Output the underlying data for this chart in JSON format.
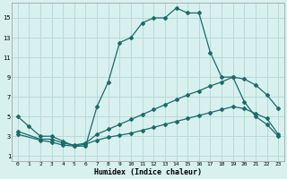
{
  "xlabel": "Humidex (Indice chaleur)",
  "bg_color": "#d8f0ee",
  "grid_color": "#b8dbd8",
  "line_color": "#1a6b6b",
  "xlim": [
    -0.5,
    23.5
  ],
  "ylim": [
    0.5,
    16.5
  ],
  "xticks": [
    0,
    1,
    2,
    3,
    4,
    5,
    6,
    7,
    8,
    9,
    10,
    11,
    12,
    13,
    14,
    15,
    16,
    17,
    18,
    19,
    20,
    21,
    22,
    23
  ],
  "yticks": [
    1,
    3,
    5,
    7,
    9,
    11,
    13,
    15
  ],
  "curve1_x": [
    0,
    1,
    2,
    3,
    4,
    5,
    6,
    7,
    8,
    9,
    10,
    11,
    12,
    13,
    14,
    15,
    16,
    17,
    18,
    19,
    20,
    21,
    22,
    23
  ],
  "curve1_y": [
    5,
    4,
    3,
    3,
    2.5,
    2,
    2,
    6,
    8.5,
    12.5,
    13,
    14.5,
    15,
    15,
    16,
    15.5,
    15.5,
    11.5,
    9,
    9,
    6.5,
    5,
    4.2,
    3
  ],
  "curve2_x": [
    0,
    2,
    3,
    4,
    5,
    6,
    7,
    8,
    9,
    10,
    11,
    12,
    13,
    14,
    15,
    16,
    17,
    18,
    19,
    20,
    21,
    22,
    23
  ],
  "curve2_y": [
    3.5,
    2.7,
    2.7,
    2.3,
    2.1,
    2.3,
    3.2,
    3.7,
    4.2,
    4.7,
    5.2,
    5.7,
    6.2,
    6.7,
    7.2,
    7.6,
    8.1,
    8.5,
    9.0,
    8.8,
    8.2,
    7.2,
    5.8
  ],
  "curve3_x": [
    0,
    2,
    3,
    4,
    5,
    6,
    7,
    8,
    9,
    10,
    11,
    12,
    13,
    14,
    15,
    16,
    17,
    18,
    19,
    20,
    21,
    22,
    23
  ],
  "curve3_y": [
    3.2,
    2.6,
    2.4,
    2.1,
    2.0,
    2.2,
    2.6,
    2.9,
    3.1,
    3.3,
    3.6,
    3.9,
    4.2,
    4.5,
    4.8,
    5.1,
    5.4,
    5.7,
    6.0,
    5.8,
    5.3,
    4.8,
    3.2
  ]
}
